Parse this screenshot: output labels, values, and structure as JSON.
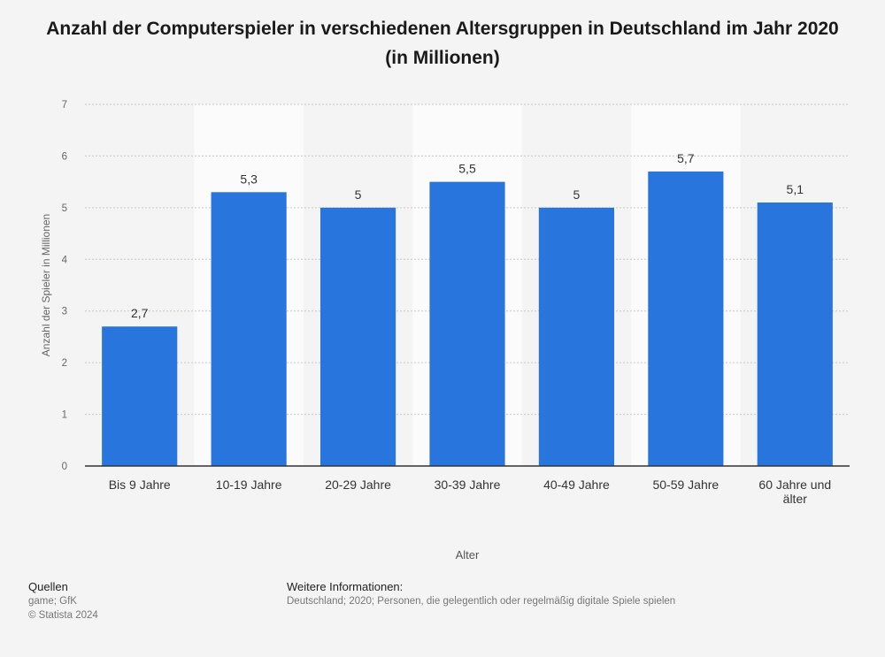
{
  "chart_data": {
    "type": "bar",
    "title": "Anzahl der Computerspieler in verschiedenen Altersgruppen in Deutschland im Jahr 2020 (in Millionen)",
    "xlabel": "Alter",
    "ylabel": "Anzahl der Spieler in Millionen",
    "categories": [
      "Bis 9 Jahre",
      "10-19 Jahre",
      "20-29 Jahre",
      "30-39 Jahre",
      "40-49 Jahre",
      "50-59 Jahre",
      "60 Jahre und älter"
    ],
    "values": [
      2.7,
      5.3,
      5,
      5.5,
      5,
      5.7,
      5.1
    ],
    "value_labels": [
      "2,7",
      "5,3",
      "5",
      "5,5",
      "5",
      "5,7",
      "5,1"
    ],
    "ylim": [
      0,
      7
    ],
    "yticks": [
      0,
      1,
      2,
      3,
      4,
      5,
      6,
      7
    ],
    "grid": true,
    "bar_color": "#2876dd"
  },
  "footer": {
    "sources_label": "Quellen",
    "sources": "game; GfK",
    "copyright": "© Statista 2024",
    "info_label": "Weitere Informationen:",
    "info": "Deutschland; 2020; Personen, die gelegentlich oder regelmäßig digitale Spiele spielen"
  }
}
